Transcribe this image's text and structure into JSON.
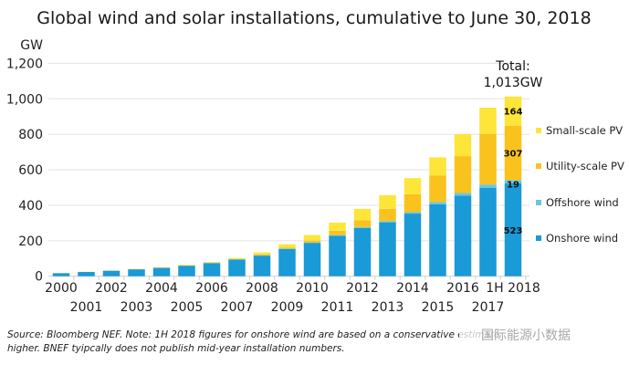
{
  "chart_data": {
    "type": "bar",
    "stacked": true,
    "title": "Global wind and solar installations, cumulative to June 30, 2018",
    "ylabel": "GW",
    "ylim": [
      0,
      1200
    ],
    "yticks": [
      0,
      200,
      400,
      600,
      800,
      1000,
      1200
    ],
    "ytick_labels": [
      "0",
      "200",
      "400",
      "600",
      "800",
      "1,000",
      "1,200"
    ],
    "grid": true,
    "legend_placement": "right",
    "categories": [
      "2000",
      "2001",
      "2002",
      "2003",
      "2004",
      "2005",
      "2006",
      "2007",
      "2008",
      "2009",
      "2010",
      "2011",
      "2012",
      "2013",
      "2014",
      "2015",
      "2016",
      "2017",
      "1H 2018"
    ],
    "series": [
      {
        "name": "Onshore wind",
        "color": "#1a9ad6",
        "values": [
          17,
          24,
          31,
          39,
          47,
          59,
          74,
          94,
          116,
          154,
          188,
          228,
          272,
          304,
          353,
          406,
          455,
          499,
          523
        ]
      },
      {
        "name": "Offshore wind",
        "color": "#6cc5e0",
        "values": [
          0,
          0,
          0,
          0,
          1,
          1,
          1,
          1,
          1,
          2,
          3,
          4,
          5,
          7,
          8,
          12,
          14,
          18,
          19
        ]
      },
      {
        "name": "Utility-scale PV",
        "color": "#f9c21d",
        "values": [
          0,
          0,
          0,
          0,
          0,
          0,
          0,
          1,
          5,
          6,
          10,
          24,
          39,
          69,
          101,
          149,
          208,
          284,
          307
        ]
      },
      {
        "name": "Small-scale PV",
        "color": "#fde53a",
        "values": [
          1,
          1,
          2,
          2,
          3,
          4,
          5,
          7,
          12,
          18,
          31,
          46,
          64,
          77,
          91,
          103,
          124,
          149,
          164
        ]
      }
    ],
    "data_labels": [
      "523",
      "19",
      "307",
      "164"
    ],
    "annotation": {
      "line1": "Total:",
      "line2": "1,013GW"
    }
  },
  "source_note": {
    "line1": "Source: Bloomberg NEF. Note: 1H 2018 figures for onshore wind are based on a conservative estimate",
    "line2": "higher. BNEF tyipcally does not publish mid-year installation numbers."
  },
  "watermark": "国际能源小数据"
}
